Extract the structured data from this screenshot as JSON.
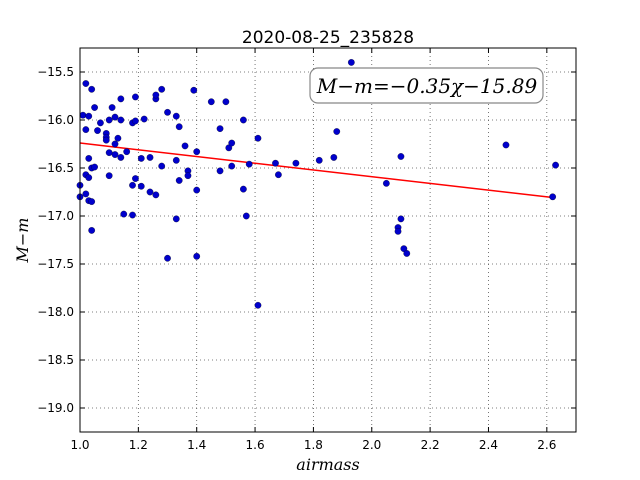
{
  "chart_data": {
    "type": "scatter",
    "title": "2020-08-25_235828",
    "xlabel": "airmass",
    "ylabel": "M−m",
    "xlim": [
      1.0,
      2.7
    ],
    "ylim": [
      -19.25,
      -15.25
    ],
    "y_inverted": true,
    "grid": true,
    "x_ticks": [
      "1.0",
      "1.2",
      "1.4",
      "1.6",
      "1.8",
      "2.0",
      "2.2",
      "2.4",
      "2.6"
    ],
    "y_ticks": [
      "−15.5",
      "−16.0",
      "−16.5",
      "−17.0",
      "−17.5",
      "−18.0",
      "−18.5",
      "−19.0"
    ],
    "annotation": "M−m=−0.35χ−15.89",
    "fit": {
      "slope": -0.35,
      "intercept": -15.89,
      "x_range": [
        1.0,
        2.62
      ],
      "color": "#ff0000"
    },
    "marker_color": "#0000cc",
    "points": [
      [
        1.0,
        -16.68
      ],
      [
        1.01,
        -15.95
      ],
      [
        1.0,
        -16.8
      ],
      [
        1.02,
        -15.62
      ],
      [
        1.02,
        -16.1
      ],
      [
        1.02,
        -16.57
      ],
      [
        1.02,
        -16.77
      ],
      [
        1.03,
        -15.96
      ],
      [
        1.03,
        -16.4
      ],
      [
        1.03,
        -16.6
      ],
      [
        1.03,
        -16.84
      ],
      [
        1.04,
        -16.85
      ],
      [
        1.04,
        -15.68
      ],
      [
        1.04,
        -16.5
      ],
      [
        1.05,
        -16.49
      ],
      [
        1.04,
        -17.15
      ],
      [
        1.05,
        -15.87
      ],
      [
        1.06,
        -16.11
      ],
      [
        1.07,
        -16.03
      ],
      [
        1.09,
        -16.14
      ],
      [
        1.09,
        -16.18
      ],
      [
        1.09,
        -16.21
      ],
      [
        1.1,
        -16.58
      ],
      [
        1.1,
        -16.0
      ],
      [
        1.1,
        -16.34
      ],
      [
        1.11,
        -15.87
      ],
      [
        1.12,
        -16.36
      ],
      [
        1.12,
        -16.25
      ],
      [
        1.12,
        -15.97
      ],
      [
        1.13,
        -16.19
      ],
      [
        1.14,
        -15.78
      ],
      [
        1.14,
        -16.0
      ],
      [
        1.14,
        -16.39
      ],
      [
        1.15,
        -16.98
      ],
      [
        1.16,
        -16.33
      ],
      [
        1.18,
        -16.03
      ],
      [
        1.18,
        -16.68
      ],
      [
        1.19,
        -15.76
      ],
      [
        1.19,
        -16.01
      ],
      [
        1.19,
        -16.61
      ],
      [
        1.18,
        -16.99
      ],
      [
        1.21,
        -16.4
      ],
      [
        1.21,
        -16.69
      ],
      [
        1.22,
        -15.99
      ],
      [
        1.24,
        -16.39
      ],
      [
        1.24,
        -16.75
      ],
      [
        1.26,
        -16.78
      ],
      [
        1.26,
        -15.78
      ],
      [
        1.26,
        -15.74
      ],
      [
        1.28,
        -15.68
      ],
      [
        1.28,
        -16.48
      ],
      [
        1.3,
        -15.92
      ],
      [
        1.3,
        -17.44
      ],
      [
        1.33,
        -15.96
      ],
      [
        1.33,
        -16.42
      ],
      [
        1.33,
        -17.03
      ],
      [
        1.34,
        -16.07
      ],
      [
        1.34,
        -16.63
      ],
      [
        1.36,
        -16.27
      ],
      [
        1.37,
        -16.53
      ],
      [
        1.37,
        -16.58
      ],
      [
        1.39,
        -15.69
      ],
      [
        1.4,
        -16.33
      ],
      [
        1.4,
        -16.73
      ],
      [
        1.4,
        -17.42
      ],
      [
        1.45,
        -15.81
      ],
      [
        1.48,
        -16.09
      ],
      [
        1.48,
        -16.53
      ],
      [
        1.5,
        -15.81
      ],
      [
        1.51,
        -16.29
      ],
      [
        1.52,
        -16.24
      ],
      [
        1.52,
        -16.48
      ],
      [
        1.56,
        -16.0
      ],
      [
        1.56,
        -16.72
      ],
      [
        1.57,
        -17.0
      ],
      [
        1.58,
        -16.46
      ],
      [
        1.61,
        -16.19
      ],
      [
        1.61,
        -17.93
      ],
      [
        1.67,
        -16.45
      ],
      [
        1.68,
        -16.57
      ],
      [
        1.74,
        -16.45
      ],
      [
        1.82,
        -16.42
      ],
      [
        1.87,
        -16.39
      ],
      [
        1.88,
        -16.12
      ],
      [
        1.93,
        -15.4
      ],
      [
        2.05,
        -16.66
      ],
      [
        2.09,
        -17.12
      ],
      [
        2.09,
        -17.16
      ],
      [
        2.1,
        -16.38
      ],
      [
        2.1,
        -17.03
      ],
      [
        2.11,
        -17.34
      ],
      [
        2.12,
        -17.39
      ],
      [
        2.46,
        -16.26
      ],
      [
        2.62,
        -16.8
      ],
      [
        2.63,
        -16.47
      ]
    ]
  }
}
